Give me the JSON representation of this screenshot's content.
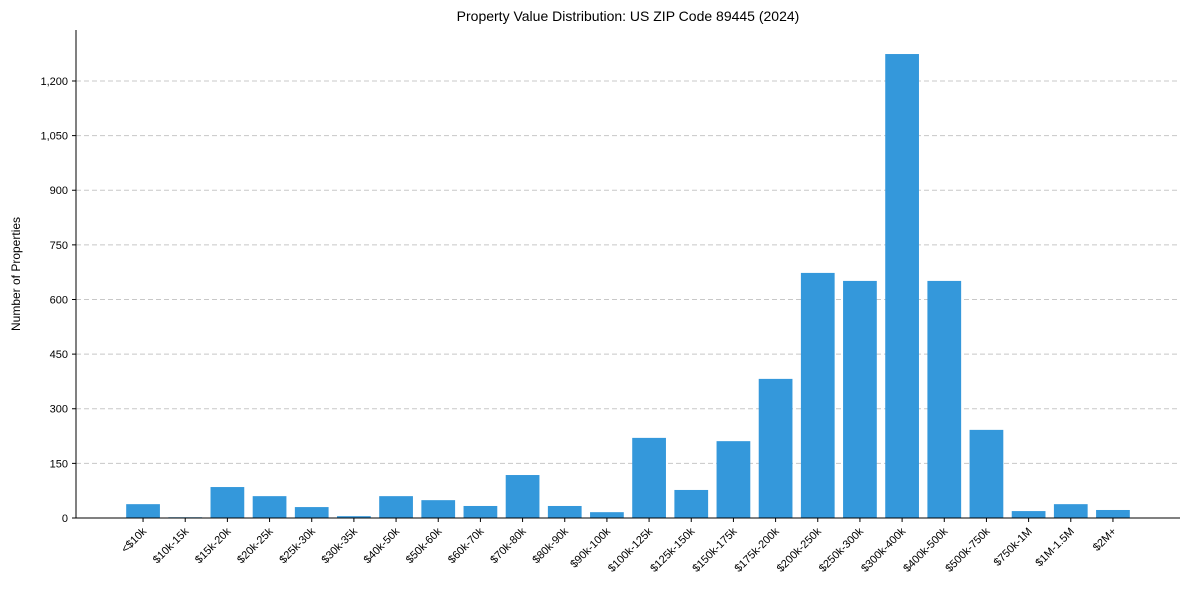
{
  "chart_data": {
    "type": "bar",
    "title": "Property Value Distribution: US ZIP Code 89445 (2024)",
    "xlabel": "",
    "ylabel": "Number of Properties",
    "categories": [
      "<$10k",
      "$10k-15k",
      "$15k-20k",
      "$20k-25k",
      "$25k-30k",
      "$30k-35k",
      "$40k-50k",
      "$50k-60k",
      "$60k-70k",
      "$70k-80k",
      "$80k-90k",
      "$90k-100k",
      "$100k-125k",
      "$125k-150k",
      "$150k-175k",
      "$175k-200k",
      "$200k-250k",
      "$250k-300k",
      "$300k-400k",
      "$400k-500k",
      "$500k-750k",
      "$750k-1M",
      "$1M-1.5M",
      "$2M+"
    ],
    "values": [
      38,
      2,
      85,
      60,
      30,
      5,
      60,
      49,
      33,
      118,
      33,
      16,
      220,
      77,
      211,
      382,
      673,
      651,
      1274,
      651,
      242,
      19,
      38,
      22
    ],
    "ylim": [
      0,
      1340
    ],
    "yticks": [
      0,
      150,
      300,
      450,
      600,
      750,
      900,
      1050,
      1200
    ],
    "ytick_labels": [
      "0",
      "150",
      "300",
      "450",
      "600",
      "750",
      "900",
      "1,050",
      "1,200"
    ],
    "grid": "y-dashed",
    "bar_color": "#3498db"
  }
}
